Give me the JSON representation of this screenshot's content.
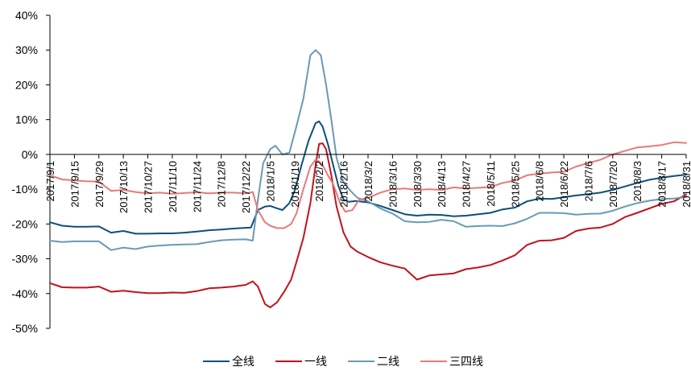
{
  "chart_data": {
    "type": "line",
    "title": "",
    "xlabel": "",
    "ylabel": "",
    "ylim": [
      -50,
      40
    ],
    "y_ticks": [
      "40%",
      "30%",
      "20%",
      "10%",
      "0%",
      "-10%",
      "-20%",
      "-30%",
      "-40%",
      "-50%"
    ],
    "x_ticks": [
      "2017/9/1",
      "2017/9/15",
      "2017/9/29",
      "2017/10/13",
      "2017/10/27",
      "2017/11/10",
      "2017/11/24",
      "2017/12/8",
      "2017/12/22",
      "2018/1/5",
      "2018/1/19",
      "2018/2/2",
      "2018/2/16",
      "2018/3/2",
      "2018/3/16",
      "2018/3/30",
      "2018/4/13",
      "2018/4/27",
      "2018/5/11",
      "2018/5/25",
      "2018/6/8",
      "2018/6/22",
      "2018/7/6",
      "2018/7/20",
      "2018/8/3",
      "2018/8/17",
      "2018/8/31"
    ],
    "x_range": [
      "2017/9/1",
      "2018/8/31"
    ],
    "legend_position": "bottom",
    "grid": false,
    "series": [
      {
        "name": "全线",
        "color": "#0d4f7a",
        "points": [
          [
            "2017/9/1",
            -19.5
          ],
          [
            "2017/9/8",
            -20.5
          ],
          [
            "2017/9/15",
            -20.8
          ],
          [
            "2017/9/22",
            -20.8
          ],
          [
            "2017/9/29",
            -20.7
          ],
          [
            "2017/10/6",
            -22.5
          ],
          [
            "2017/10/13",
            -22.0
          ],
          [
            "2017/10/20",
            -22.8
          ],
          [
            "2017/10/27",
            -22.8
          ],
          [
            "2017/11/3",
            -22.7
          ],
          [
            "2017/11/10",
            -22.7
          ],
          [
            "2017/11/17",
            -22.5
          ],
          [
            "2017/11/24",
            -22.2
          ],
          [
            "2017/12/1",
            -21.8
          ],
          [
            "2017/12/8",
            -21.6
          ],
          [
            "2017/12/15",
            -21.3
          ],
          [
            "2017/12/22",
            -21.1
          ],
          [
            "2017/12/25",
            -21.0
          ],
          [
            "2017/12/29",
            -16.0
          ],
          [
            "2018/1/2",
            -15.0
          ],
          [
            "2018/1/5",
            -14.8
          ],
          [
            "2018/1/9",
            -15.5
          ],
          [
            "2018/1/12",
            -16.0
          ],
          [
            "2018/1/16",
            -14.0
          ],
          [
            "2018/1/19",
            -10.5
          ],
          [
            "2018/1/23",
            -3.0
          ],
          [
            "2018/1/27",
            4.0
          ],
          [
            "2018/1/31",
            9.0
          ],
          [
            "2018/2/2",
            9.5
          ],
          [
            "2018/2/4",
            8.0
          ],
          [
            "2018/2/7",
            3.0
          ],
          [
            "2018/2/10",
            -3.0
          ],
          [
            "2018/2/13",
            -9.0
          ],
          [
            "2018/2/16",
            -13.0
          ],
          [
            "2018/2/19",
            -13.6
          ],
          [
            "2018/2/23",
            -13.4
          ],
          [
            "2018/3/2",
            -13.8
          ],
          [
            "2018/3/9",
            -14.8
          ],
          [
            "2018/3/16",
            -16.0
          ],
          [
            "2018/3/23",
            -17.2
          ],
          [
            "2018/3/30",
            -17.6
          ],
          [
            "2018/4/6",
            -17.3
          ],
          [
            "2018/4/13",
            -17.4
          ],
          [
            "2018/4/20",
            -17.8
          ],
          [
            "2018/4/27",
            -17.6
          ],
          [
            "2018/5/4",
            -17.2
          ],
          [
            "2018/5/11",
            -16.8
          ],
          [
            "2018/5/18",
            -15.8
          ],
          [
            "2018/5/25",
            -15.3
          ],
          [
            "2018/6/1",
            -13.5
          ],
          [
            "2018/6/8",
            -12.7
          ],
          [
            "2018/6/15",
            -12.8
          ],
          [
            "2018/6/22",
            -12.3
          ],
          [
            "2018/6/29",
            -11.8
          ],
          [
            "2018/7/6",
            -11.4
          ],
          [
            "2018/7/13",
            -11.0
          ],
          [
            "2018/7/20",
            -10.2
          ],
          [
            "2018/7/27",
            -9.2
          ],
          [
            "2018/8/3",
            -8.2
          ],
          [
            "2018/8/10",
            -7.3
          ],
          [
            "2018/8/17",
            -6.7
          ],
          [
            "2018/8/24",
            -6.2
          ],
          [
            "2018/8/31",
            -5.8
          ]
        ]
      },
      {
        "name": "一线",
        "color": "#c0131a",
        "points": [
          [
            "2017/9/1",
            -37.0
          ],
          [
            "2017/9/8",
            -38.2
          ],
          [
            "2017/9/15",
            -38.3
          ],
          [
            "2017/9/22",
            -38.3
          ],
          [
            "2017/9/29",
            -38.0
          ],
          [
            "2017/10/6",
            -39.5
          ],
          [
            "2017/10/13",
            -39.2
          ],
          [
            "2017/10/20",
            -39.6
          ],
          [
            "2017/10/27",
            -39.9
          ],
          [
            "2017/11/3",
            -39.9
          ],
          [
            "2017/11/10",
            -39.7
          ],
          [
            "2017/11/17",
            -39.8
          ],
          [
            "2017/11/24",
            -39.3
          ],
          [
            "2017/12/1",
            -38.5
          ],
          [
            "2017/12/8",
            -38.3
          ],
          [
            "2017/12/15",
            -38.0
          ],
          [
            "2017/12/22",
            -37.5
          ],
          [
            "2017/12/26",
            -36.5
          ],
          [
            "2017/12/29",
            -38.0
          ],
          [
            "2018/1/2",
            -43.0
          ],
          [
            "2018/1/5",
            -44.0
          ],
          [
            "2018/1/9",
            -42.5
          ],
          [
            "2018/1/13",
            -39.5
          ],
          [
            "2018/1/17",
            -36.0
          ],
          [
            "2018/1/20",
            -31.0
          ],
          [
            "2018/1/24",
            -24.0
          ],
          [
            "2018/1/28",
            -14.0
          ],
          [
            "2018/1/31",
            -3.0
          ],
          [
            "2018/2/2",
            3.0
          ],
          [
            "2018/2/4",
            3.2
          ],
          [
            "2018/2/6",
            1.5
          ],
          [
            "2018/2/9",
            -6.0
          ],
          [
            "2018/2/12",
            -15.0
          ],
          [
            "2018/2/16",
            -22.5
          ],
          [
            "2018/2/20",
            -26.5
          ],
          [
            "2018/2/24",
            -28.0
          ],
          [
            "2018/3/2",
            -29.5
          ],
          [
            "2018/3/9",
            -31.0
          ],
          [
            "2018/3/16",
            -32.0
          ],
          [
            "2018/3/23",
            -32.8
          ],
          [
            "2018/3/30",
            -36.0
          ],
          [
            "2018/4/6",
            -34.8
          ],
          [
            "2018/4/13",
            -34.5
          ],
          [
            "2018/4/20",
            -34.2
          ],
          [
            "2018/4/27",
            -33.0
          ],
          [
            "2018/5/4",
            -32.5
          ],
          [
            "2018/5/11",
            -31.8
          ],
          [
            "2018/5/18",
            -30.5
          ],
          [
            "2018/5/25",
            -29.0
          ],
          [
            "2018/6/1",
            -26.0
          ],
          [
            "2018/6/8",
            -24.8
          ],
          [
            "2018/6/15",
            -24.7
          ],
          [
            "2018/6/22",
            -24.0
          ],
          [
            "2018/6/29",
            -22.0
          ],
          [
            "2018/7/6",
            -21.3
          ],
          [
            "2018/7/13",
            -21.0
          ],
          [
            "2018/7/20",
            -20.0
          ],
          [
            "2018/7/27",
            -18.0
          ],
          [
            "2018/8/3",
            -16.8
          ],
          [
            "2018/8/10",
            -15.5
          ],
          [
            "2018/8/17",
            -14.2
          ],
          [
            "2018/8/24",
            -13.5
          ],
          [
            "2018/8/31",
            -11.5
          ]
        ]
      },
      {
        "name": "二线",
        "color": "#6a9ab3",
        "points": [
          [
            "2017/9/1",
            -24.8
          ],
          [
            "2017/9/8",
            -25.2
          ],
          [
            "2017/9/15",
            -25.0
          ],
          [
            "2017/9/22",
            -25.0
          ],
          [
            "2017/9/29",
            -25.0
          ],
          [
            "2017/10/6",
            -27.5
          ],
          [
            "2017/10/13",
            -26.8
          ],
          [
            "2017/10/20",
            -27.2
          ],
          [
            "2017/10/27",
            -26.5
          ],
          [
            "2017/11/3",
            -26.2
          ],
          [
            "2017/11/10",
            -26.0
          ],
          [
            "2017/11/17",
            -25.9
          ],
          [
            "2017/11/24",
            -25.8
          ],
          [
            "2017/12/1",
            -25.2
          ],
          [
            "2017/12/8",
            -24.7
          ],
          [
            "2017/12/15",
            -24.5
          ],
          [
            "2017/12/22",
            -24.4
          ],
          [
            "2017/12/26",
            -24.8
          ],
          [
            "2017/12/29",
            -13.0
          ],
          [
            "2018/1/1",
            -2.5
          ],
          [
            "2018/1/5",
            1.5
          ],
          [
            "2018/1/8",
            2.5
          ],
          [
            "2018/1/12",
            0.0
          ],
          [
            "2018/1/16",
            0.5
          ],
          [
            "2018/1/20",
            8.0
          ],
          [
            "2018/1/24",
            16.0
          ],
          [
            "2018/1/28",
            28.5
          ],
          [
            "2018/1/31",
            30.0
          ],
          [
            "2018/2/3",
            28.5
          ],
          [
            "2018/2/6",
            20.0
          ],
          [
            "2018/2/9",
            10.0
          ],
          [
            "2018/2/12",
            -1.0
          ],
          [
            "2018/2/16",
            -8.0
          ],
          [
            "2018/2/20",
            -10.5
          ],
          [
            "2018/2/24",
            -12.5
          ],
          [
            "2018/3/2",
            -13.5
          ],
          [
            "2018/3/9",
            -15.5
          ],
          [
            "2018/3/16",
            -17.0
          ],
          [
            "2018/3/23",
            -19.2
          ],
          [
            "2018/3/30",
            -19.5
          ],
          [
            "2018/4/6",
            -19.4
          ],
          [
            "2018/4/13",
            -18.8
          ],
          [
            "2018/4/20",
            -19.2
          ],
          [
            "2018/4/27",
            -20.8
          ],
          [
            "2018/5/4",
            -20.6
          ],
          [
            "2018/5/11",
            -20.5
          ],
          [
            "2018/5/18",
            -20.6
          ],
          [
            "2018/5/25",
            -19.8
          ],
          [
            "2018/6/1",
            -18.5
          ],
          [
            "2018/6/8",
            -16.8
          ],
          [
            "2018/6/15",
            -16.8
          ],
          [
            "2018/6/22",
            -16.9
          ],
          [
            "2018/6/29",
            -17.3
          ],
          [
            "2018/7/6",
            -17.1
          ],
          [
            "2018/7/13",
            -17.0
          ],
          [
            "2018/7/20",
            -16.2
          ],
          [
            "2018/7/27",
            -15.0
          ],
          [
            "2018/8/3",
            -14.0
          ],
          [
            "2018/8/10",
            -13.3
          ],
          [
            "2018/8/17",
            -12.8
          ],
          [
            "2018/8/24",
            -12.7
          ],
          [
            "2018/8/31",
            -12.2
          ]
        ]
      },
      {
        "name": "三四线",
        "color": "#e8797a",
        "points": [
          [
            "2017/9/1",
            -6.0
          ],
          [
            "2017/9/8",
            -7.2
          ],
          [
            "2017/9/15",
            -7.5
          ],
          [
            "2017/9/22",
            -7.7
          ],
          [
            "2017/9/29",
            -7.8
          ],
          [
            "2017/10/6",
            -10.5
          ],
          [
            "2017/10/13",
            -10.2
          ],
          [
            "2017/10/20",
            -10.8
          ],
          [
            "2017/10/27",
            -11.2
          ],
          [
            "2017/11/3",
            -11.0
          ],
          [
            "2017/11/10",
            -11.3
          ],
          [
            "2017/11/17",
            -11.1
          ],
          [
            "2017/11/24",
            -10.9
          ],
          [
            "2017/12/1",
            -11.2
          ],
          [
            "2017/12/8",
            -11.0
          ],
          [
            "2017/12/15",
            -11.0
          ],
          [
            "2017/12/22",
            -11.2
          ],
          [
            "2017/12/26",
            -10.8
          ],
          [
            "2017/12/29",
            -16.0
          ],
          [
            "2018/1/2",
            -19.5
          ],
          [
            "2018/1/5",
            -20.5
          ],
          [
            "2018/1/9",
            -21.2
          ],
          [
            "2018/1/13",
            -21.2
          ],
          [
            "2018/1/17",
            -20.0
          ],
          [
            "2018/1/20",
            -17.0
          ],
          [
            "2018/1/24",
            -10.0
          ],
          [
            "2018/1/28",
            -3.5
          ],
          [
            "2018/1/31",
            -1.5
          ],
          [
            "2018/2/2",
            -2.0
          ],
          [
            "2018/2/4",
            -3.0
          ],
          [
            "2018/2/7",
            -6.0
          ],
          [
            "2018/2/10",
            -8.5
          ],
          [
            "2018/2/14",
            -14.0
          ],
          [
            "2018/2/17",
            -16.5
          ],
          [
            "2018/2/21",
            -16.0
          ],
          [
            "2018/2/25",
            -13.0
          ],
          [
            "2018/3/2",
            -12.5
          ],
          [
            "2018/3/9",
            -11.0
          ],
          [
            "2018/3/16",
            -10.0
          ],
          [
            "2018/3/23",
            -9.8
          ],
          [
            "2018/3/30",
            -10.2
          ],
          [
            "2018/4/6",
            -10.0
          ],
          [
            "2018/4/13",
            -10.2
          ],
          [
            "2018/4/20",
            -9.5
          ],
          [
            "2018/4/27",
            -9.8
          ],
          [
            "2018/5/4",
            -9.6
          ],
          [
            "2018/5/11",
            -9.4
          ],
          [
            "2018/5/18",
            -8.2
          ],
          [
            "2018/5/25",
            -7.5
          ],
          [
            "2018/6/1",
            -6.0
          ],
          [
            "2018/6/8",
            -5.5
          ],
          [
            "2018/6/15",
            -5.2
          ],
          [
            "2018/6/22",
            -5.0
          ],
          [
            "2018/6/29",
            -3.5
          ],
          [
            "2018/7/6",
            -2.5
          ],
          [
            "2018/7/13",
            -1.5
          ],
          [
            "2018/7/20",
            0.0
          ],
          [
            "2018/7/27",
            1.0
          ],
          [
            "2018/8/3",
            2.0
          ],
          [
            "2018/8/10",
            2.3
          ],
          [
            "2018/8/17",
            2.7
          ],
          [
            "2018/8/24",
            3.5
          ],
          [
            "2018/8/31",
            3.3
          ]
        ]
      }
    ]
  }
}
